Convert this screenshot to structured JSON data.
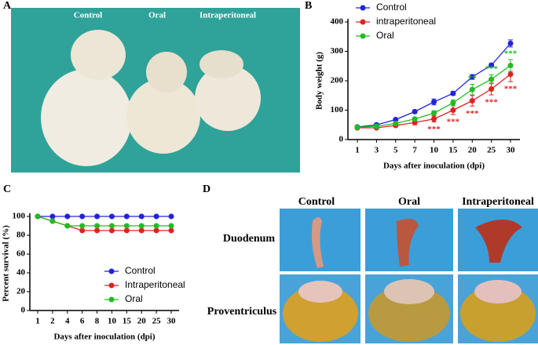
{
  "figure_labels": [
    "A",
    "B",
    "C",
    "D"
  ],
  "panel_a": {
    "labels": [
      "Control",
      "Oral",
      "Intraperitoneal"
    ]
  },
  "panel_d": {
    "columns": [
      "Control",
      "Oral",
      "Intraperitoneal"
    ],
    "rows": [
      "Duodenum",
      "Proventriculus"
    ]
  },
  "chart_data": [
    {
      "type": "line",
      "ylabel": "Body weight (g)",
      "xlabel": "Days after inoculation (dpi)",
      "categories": [
        "1",
        "3",
        "5",
        "7",
        "10",
        "15",
        "20",
        "25",
        "30"
      ],
      "ylim": [
        0,
        400
      ],
      "yticks": [
        0,
        100,
        200,
        300,
        400
      ],
      "legend": "upper left",
      "series": [
        {
          "name": "Control",
          "color": "#2222dd",
          "values": [
            43,
            50,
            68,
            95,
            128,
            157,
            213,
            253,
            327
          ],
          "errors": [
            3,
            3,
            4,
            5,
            10,
            6,
            8,
            6,
            12
          ]
        },
        {
          "name": "intraperitoneal",
          "color": "#dd2222",
          "values": [
            40,
            40,
            48,
            58,
            70,
            100,
            132,
            172,
            222
          ],
          "errors": [
            2,
            3,
            4,
            8,
            10,
            15,
            18,
            20,
            25
          ]
        },
        {
          "name": "Oral",
          "color": "#22bb22",
          "values": [
            42,
            45,
            55,
            70,
            90,
            125,
            170,
            205,
            252
          ],
          "errors": [
            3,
            3,
            4,
            5,
            8,
            10,
            18,
            15,
            20
          ]
        }
      ],
      "annotations": [
        {
          "text": "***",
          "series": "intraperitoneal",
          "category": "10"
        },
        {
          "text": "***",
          "series": "intraperitoneal",
          "category": "15"
        },
        {
          "text": "***",
          "series": "intraperitoneal",
          "category": "20"
        },
        {
          "text": "***",
          "series": "intraperitoneal",
          "category": "25"
        },
        {
          "text": "***",
          "series": "intraperitoneal",
          "category": "30"
        },
        {
          "text": "**",
          "series": "Oral",
          "category": "20"
        },
        {
          "text": "***",
          "series": "Oral",
          "category": "25"
        },
        {
          "text": "***",
          "series": "Oral",
          "category": "30"
        }
      ]
    },
    {
      "type": "line",
      "ylabel": "Percent survival (%)",
      "xlabel": "Days after inoculation (dpi)",
      "categories": [
        "1",
        "2",
        "4",
        "6",
        "8",
        "10",
        "15",
        "20",
        "25",
        "30"
      ],
      "ylim": [
        0,
        100
      ],
      "yticks": [
        0,
        20,
        40,
        60,
        80,
        100
      ],
      "legend": "lower right",
      "series": [
        {
          "name": "Control",
          "color": "#2222dd",
          "values": [
            100,
            100,
            100,
            100,
            100,
            100,
            100,
            100,
            100,
            100
          ]
        },
        {
          "name": "Intraperitoneal",
          "color": "#dd2222",
          "values": [
            100,
            95,
            90,
            85,
            85,
            85,
            85,
            85,
            85,
            85
          ]
        },
        {
          "name": "Oral",
          "color": "#22bb22",
          "values": [
            100,
            95,
            90,
            90,
            90,
            90,
            90,
            90,
            90,
            90
          ]
        }
      ]
    }
  ]
}
